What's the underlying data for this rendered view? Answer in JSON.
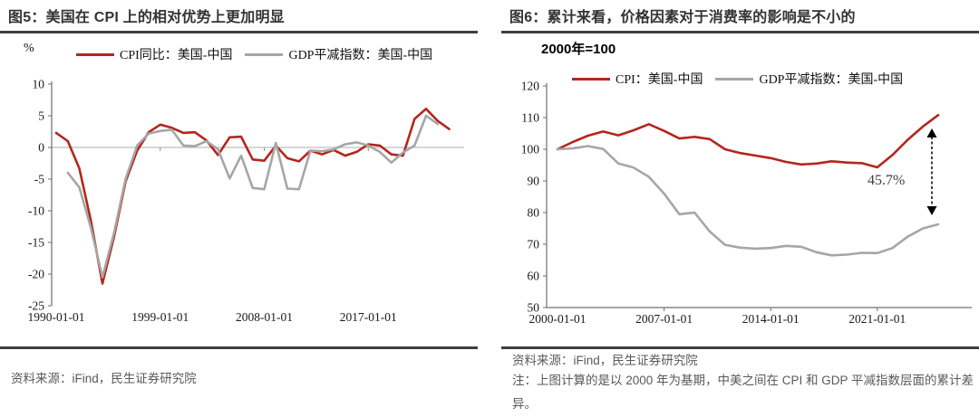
{
  "colors": {
    "series_red": "#b4261e",
    "series_gray": "#a6a6a6",
    "axis": "#6e6e6e",
    "zero_line": "#bdbdbd",
    "title_text": "#333333",
    "rule": "#3f3f3f",
    "footer_text": "#595959",
    "annotation_arrow": "#000000"
  },
  "chart_data": [
    {
      "type": "line",
      "title": "图5：美国在 CPI 上的相对优势上更加明显",
      "ylabel": "%",
      "xlabel": "",
      "ylim": [
        -25,
        10
      ],
      "y_ticks": [
        10,
        5,
        0,
        -5,
        -10,
        -15,
        -20,
        -25
      ],
      "x_tick_years": [
        1990,
        1999,
        2008,
        2017
      ],
      "x_tick_labels": [
        "1990-01-01",
        "1999-01-01",
        "2008-01-01",
        "2017-01-01"
      ],
      "grid": false,
      "legend_position": "top",
      "series": [
        {
          "name": "CPI同比：美国-中国",
          "color": "#b4261e",
          "start_year": 1990,
          "values": [
            2.3,
            1.0,
            -3.3,
            -11.6,
            -21.5,
            -14.1,
            -5.4,
            -0.5,
            2.4,
            3.6,
            3.1,
            2.3,
            2.4,
            1.1,
            -1.2,
            1.6,
            1.7,
            -1.9,
            -2.1,
            0.3,
            -1.7,
            -2.2,
            -0.5,
            -1.1,
            -0.4,
            -1.3,
            -0.7,
            0.5,
            0.3,
            -1.1,
            -1.3,
            4.5,
            6.1,
            4.2,
            2.9
          ]
        },
        {
          "name": "GDP平减指数：美国-中国",
          "color": "#a6a6a6",
          "start_year": 1991,
          "values": [
            -4.0,
            -6.3,
            -12.7,
            -20.5,
            -13.5,
            -5.0,
            0.3,
            2.2,
            2.6,
            2.8,
            0.3,
            0.2,
            1.0,
            -0.3,
            -4.9,
            -1.3,
            -6.4,
            -6.6,
            0.7,
            -6.5,
            -6.6,
            -0.5,
            -0.6,
            -0.3,
            0.5,
            0.8,
            0.3,
            -0.7,
            -2.4,
            -0.8,
            0.3,
            5.0,
            3.7
          ]
        }
      ],
      "source": "资料来源：iFind，民生证券研究院"
    },
    {
      "type": "line",
      "title": "图6：累计来看，价格因素对于消费率的影响是不小的",
      "base_label": "2000年=100",
      "xlabel": "",
      "ylim": [
        50,
        120
      ],
      "y_ticks": [
        120,
        110,
        100,
        90,
        80,
        70,
        60,
        50
      ],
      "x_tick_years": [
        2000,
        2007,
        2014,
        2021
      ],
      "x_tick_labels": [
        "2000-01-01",
        "2007-01-01",
        "2014-01-01",
        "2021-01-01"
      ],
      "grid": false,
      "legend_position": "top",
      "annotation": {
        "text": "45.7%"
      },
      "series": [
        {
          "name": "CPI：美国-中国",
          "color": "#b4261e",
          "start_year": 2000,
          "values": [
            100,
            102.3,
            104.3,
            105.6,
            104.4,
            106.0,
            107.9,
            105.8,
            103.4,
            103.9,
            103.2,
            100.0,
            98.8,
            98.0,
            97.2,
            96.0,
            95.2,
            95.5,
            96.2,
            95.8,
            95.6,
            94.3,
            98.2,
            103.0,
            107.2,
            110.8
          ]
        },
        {
          "name": "GDP平减指数：美国-中国",
          "color": "#a6a6a6",
          "start_year": 2000,
          "values": [
            100,
            100.3,
            101.0,
            100.1,
            95.5,
            94.2,
            91.3,
            86.0,
            79.5,
            80.0,
            74.0,
            69.8,
            68.9,
            68.6,
            68.8,
            69.5,
            69.2,
            67.5,
            66.5,
            66.7,
            67.3,
            67.2,
            68.8,
            72.4,
            75.0,
            76.3
          ]
        }
      ],
      "source": "资料来源：iFind，民生证券研究院",
      "note": "注：上图计算的是以 2000 年为基期，中美之间在 CPI 和 GDP 平减指数层面的累计差异。"
    }
  ]
}
